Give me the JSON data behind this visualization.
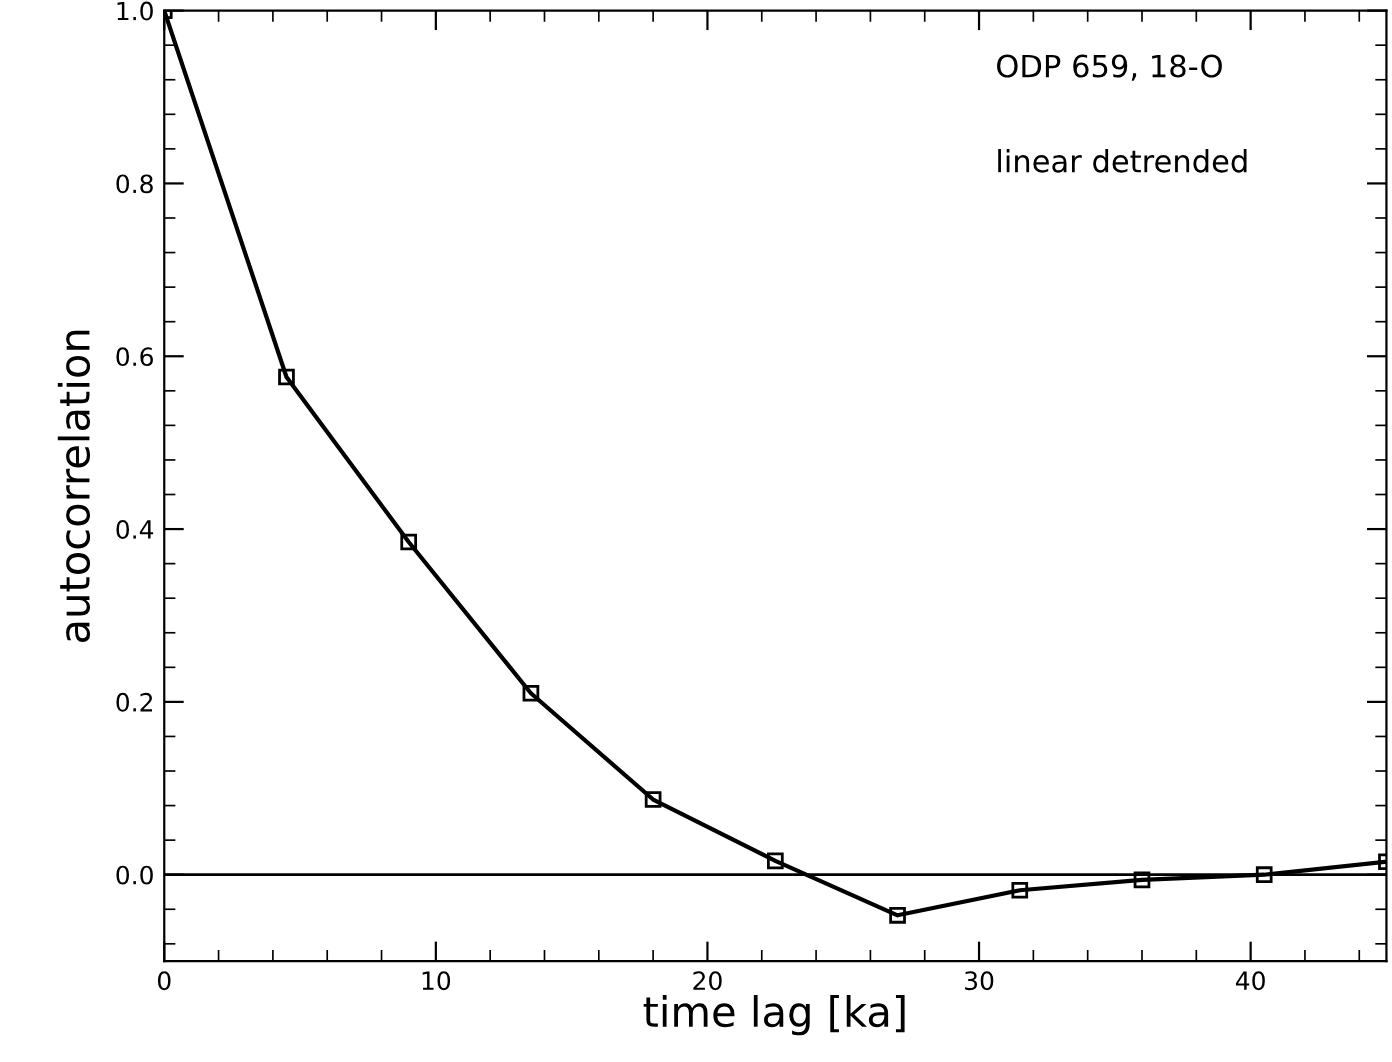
{
  "chart_data": {
    "type": "line",
    "xlabel": "time lag [ka]",
    "ylabel": "autocorrelation",
    "annotations": [
      "ODP 659, 18-O",
      "linear detrended"
    ],
    "x": [
      0,
      4.5,
      9,
      13.5,
      18,
      22.5,
      27,
      31.5,
      36,
      40.5,
      45
    ],
    "series": [
      {
        "color": "#000000",
        "values": [
          1.0,
          0.576,
          0.385,
          0.21,
          0.087,
          0.016,
          -0.047,
          -0.018,
          -0.006,
          0.0,
          0.015
        ]
      }
    ],
    "xlim": [
      0,
      45
    ],
    "ylim": [
      -0.1,
      1.0
    ],
    "xticks": [
      0,
      10,
      20,
      30,
      40
    ],
    "yticks": [
      {
        "value": 0,
        "label": "0.0"
      },
      0.2,
      0.4,
      0.6,
      0.8,
      {
        "value": 1,
        "label": "1.0"
      }
    ],
    "ref_lines": [
      {
        "axis": "y",
        "value": 0,
        "color": "#000000"
      }
    ],
    "marker": "square",
    "line_style": "solid",
    "grid": false,
    "legend": false
  }
}
